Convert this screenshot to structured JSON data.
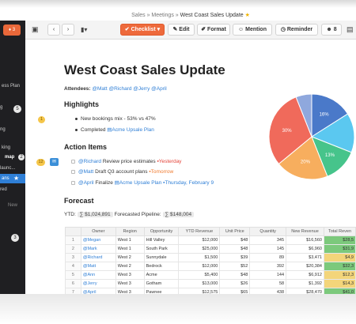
{
  "breadcrumb": {
    "part1": "Sales",
    "sep": "»",
    "part2": "Meetings",
    "current": "West Coast Sales Update"
  },
  "sidebar": {
    "badge_top": "3",
    "lines": [
      "All",
      "ess Plan",
      "g",
      "ng",
      "king",
      "map",
      "launc...",
      "ans",
      "red"
    ],
    "badge_a": "5",
    "badge_b": "2",
    "badge_c": "3",
    "new_label": "New"
  },
  "toolbar": {
    "checklist": "Checklist",
    "edit": "Edit",
    "format": "Format",
    "mention": "Mention",
    "reminder": "Reminder",
    "people_count": "8"
  },
  "doc": {
    "title": "West Coast Sales Update",
    "attendees_label": "Attendees:",
    "attendees": [
      "@Matt",
      "@Richard",
      "@Jerry",
      "@April"
    ],
    "highlights_heading": "Highlights",
    "highlight_marker": "1",
    "highlight_1": "New bookings mix - 53% vs 47%",
    "highlight_2_prefix": "Completed",
    "highlight_2_link": "Acme Upsale Plan",
    "action_heading": "Action Items",
    "action_marker": "12",
    "actions": [
      {
        "who": "@Richard",
        "text": "Review price estimates",
        "date": "Yesterday",
        "date_class": "date-red"
      },
      {
        "who": "@Matt",
        "text": "Draft Q3 account plans",
        "date": "Tomorrow",
        "date_class": "date-orange"
      },
      {
        "who": "@April",
        "text": "Finalize",
        "link": "Acme Upsale Plan",
        "date": "Thursday, February 9",
        "date_class": "date-blue"
      }
    ],
    "forecast_heading": "Forecast",
    "ytd_label": "YTD:",
    "ytd_value": "$1,024,891",
    "forecast_label": "Forecasted Pipeline:",
    "forecast_value": "$148,004"
  },
  "table": {
    "headers": [
      "",
      "Owner",
      "Region",
      "Opportunity",
      "YTD Revenue",
      "Unit Price",
      "Quantity",
      "New Revenue",
      "Total Reven"
    ],
    "rows": [
      [
        "1",
        "@Megan",
        "West 1",
        "Hill Valley",
        "$12,000",
        "$48",
        "345",
        "$16,560",
        "$28,5"
      ],
      [
        "2",
        "@Mark",
        "West 1",
        "South Park",
        "$25,000",
        "$48",
        "145",
        "$6,960",
        "$31,9"
      ],
      [
        "3",
        "@Richard",
        "West 2",
        "Sunnydale",
        "$1,500",
        "$39",
        "89",
        "$3,471",
        "$4,9"
      ],
      [
        "4",
        "@Matt",
        "West 2",
        "Bedrock",
        "$12,000",
        "$52",
        "392",
        "$20,384",
        "$32,3"
      ],
      [
        "5",
        "@Ann",
        "West 3",
        "Acme",
        "$5,400",
        "$48",
        "144",
        "$6,912",
        "$12,3"
      ],
      [
        "6",
        "@Jerry",
        "West 3",
        "Gotham",
        "$13,000",
        "$26",
        "58",
        "$1,392",
        "$14,3"
      ],
      [
        "7",
        "@April",
        "West 3",
        "Pawnee",
        "$12,575",
        "$65",
        "438",
        "$28,470",
        "$41,0"
      ]
    ],
    "row_total_class": [
      "total-high",
      "total-high",
      "total-mid",
      "total-high",
      "total-mid",
      "total-mid",
      "total-high"
    ]
  },
  "chart_data": {
    "type": "pie",
    "slices": [
      {
        "label": "16%",
        "value": 16,
        "color": "#4a79c9"
      },
      {
        "label": "",
        "value": 15,
        "color": "#5bc8f0"
      },
      {
        "label": "13%",
        "value": 13,
        "color": "#46c48b"
      },
      {
        "label": "20%",
        "value": 20,
        "color": "#f7ae5e"
      },
      {
        "label": "30%",
        "value": 30,
        "color": "#f06a5b"
      },
      {
        "label": "",
        "value": 6,
        "color": "#8fa8dd"
      }
    ]
  },
  "colors": {
    "accent": "#2f7fd6",
    "checklist": "#ee6a3c",
    "sidebar": "#1f1f22"
  }
}
